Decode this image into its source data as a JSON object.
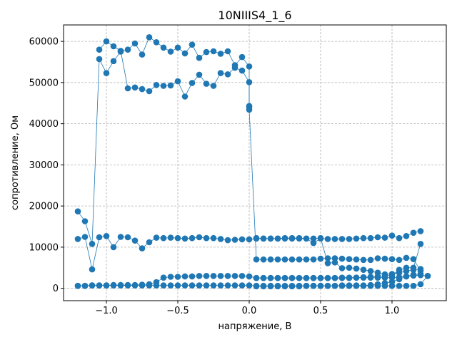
{
  "chart_data": {
    "type": "scatter",
    "title": "10NIIIS4_1_6",
    "xlabel": "напряжение, В",
    "ylabel": "сопротивление, Ом",
    "xlim": [
      -1.3,
      1.38
    ],
    "ylim": [
      -3000,
      64000
    ],
    "xticks": [
      -1.0,
      -0.5,
      0.0,
      0.5,
      1.0
    ],
    "xtick_labels": [
      "−1.0",
      "−0.5",
      "0.0",
      "0.5",
      "1.0"
    ],
    "yticks": [
      0,
      10000,
      20000,
      30000,
      40000,
      50000,
      60000
    ],
    "ytick_labels": [
      "0",
      "10000",
      "20000",
      "30000",
      "40000",
      "50000",
      "60000"
    ],
    "grid": true,
    "color": "#1f77b4",
    "series": [
      {
        "x": [
          -1.2,
          -1.15,
          -1.1,
          -1.05,
          -1.0,
          -0.95,
          -0.9,
          -0.85,
          -0.8,
          -0.75,
          -0.7,
          -0.65,
          -0.6,
          -0.55,
          -0.5,
          -0.45,
          -0.4,
          -0.35,
          -0.3,
          -0.25,
          -0.2,
          -0.15,
          -0.1,
          -0.05,
          0.0,
          0.05,
          0.1,
          0.15,
          0.2,
          0.25,
          0.3,
          0.35,
          0.4,
          0.45,
          0.5,
          0.55,
          0.6,
          0.65,
          0.7,
          0.75,
          0.8,
          0.85,
          0.9,
          0.95,
          1.0,
          1.05,
          1.1,
          1.15,
          1.2,
          1.25
        ],
        "y": [
          600,
          600,
          700,
          700,
          700,
          700,
          700,
          700,
          700,
          700,
          700,
          700,
          700,
          700,
          700,
          700,
          700,
          700,
          700,
          700,
          700,
          700,
          700,
          700,
          700,
          600,
          600,
          600,
          600,
          600,
          600,
          600,
          600,
          600,
          600,
          600,
          600,
          600,
          600,
          600,
          600,
          600,
          600,
          600,
          600,
          600,
          600,
          600,
          1000,
          3000
        ]
      },
      {
        "x": [
          1.25,
          1.2,
          1.15,
          1.1,
          1.05,
          1.0,
          0.95,
          0.9,
          0.85,
          0.8,
          0.75,
          0.7,
          0.65,
          0.6,
          0.55,
          0.5,
          0.45,
          0.4,
          0.35,
          0.3,
          0.25,
          0.2,
          0.15,
          0.1,
          0.05,
          0.0,
          -0.05,
          -0.1,
          -0.15,
          -0.2,
          -0.25,
          -0.3,
          -0.35,
          -0.4,
          -0.45,
          -0.5,
          -0.55,
          -0.6,
          -0.65,
          -0.7,
          -0.75,
          -0.8,
          -0.85,
          -0.9,
          -0.95,
          -1.0,
          -1.05,
          -1.1,
          -1.15,
          -1.2
        ],
        "y": [
          3000,
          3200,
          3100,
          2900,
          2700,
          2600,
          2600,
          2600,
          2600,
          2600,
          2600,
          2500,
          2500,
          2500,
          2500,
          2500,
          2500,
          2500,
          2500,
          2500,
          2500,
          2500,
          2500,
          2500,
          2500,
          2900,
          3000,
          3000,
          3000,
          3000,
          3000,
          3000,
          3000,
          2900,
          2900,
          2800,
          2800,
          2600,
          1500,
          1000,
          900,
          800,
          800,
          800,
          800,
          700,
          700,
          700,
          600,
          600
        ]
      },
      {
        "x": [
          -1.2,
          -1.15,
          -1.1,
          -1.05,
          -1.0,
          -0.95,
          -0.9,
          -0.85,
          -0.8,
          -0.75,
          -0.7,
          -0.65,
          -0.6,
          -0.55,
          -0.5,
          -0.45,
          -0.4,
          -0.35,
          -0.3,
          -0.25,
          -0.2,
          -0.15,
          -0.1,
          -0.05,
          0.0,
          0.0,
          0.0,
          0.05,
          0.1,
          0.15,
          0.2,
          0.25,
          0.3,
          0.35,
          0.4,
          0.45,
          0.5,
          0.55,
          0.6,
          0.65,
          0.7,
          0.75,
          0.8,
          0.85,
          0.9,
          0.95,
          1.0,
          1.05,
          1.1,
          1.15,
          1.2
        ],
        "y": [
          18700,
          16300,
          10800,
          55700,
          52300,
          55200,
          57500,
          58000,
          59500,
          56800,
          61000,
          59800,
          58500,
          57500,
          58500,
          57100,
          59200,
          56000,
          57400,
          57600,
          57000,
          57600,
          54200,
          56200,
          53900,
          44300,
          43400,
          7000,
          7000,
          7000,
          7000,
          7000,
          7000,
          7000,
          7000,
          7000,
          7200,
          7300,
          7300,
          7200,
          7100,
          7000,
          6900,
          6900,
          7300,
          7200,
          7100,
          6900,
          7400,
          7100,
          4300
        ]
      },
      {
        "x": [
          1.2,
          1.15,
          1.1,
          1.05,
          1.0,
          0.95,
          0.9,
          0.85,
          0.8,
          0.75,
          0.7,
          0.65,
          0.6,
          0.55,
          0.5,
          0.45,
          0.4,
          0.35,
          0.3,
          0.25,
          0.2,
          0.15,
          0.1,
          0.05,
          0.0,
          -0.05,
          -0.1,
          -0.15,
          -0.2,
          -0.25,
          -0.3,
          -0.35,
          -0.4,
          -0.45,
          -0.5,
          -0.55,
          -0.6,
          -0.65,
          -0.7,
          -0.75,
          -0.8,
          -0.85,
          -0.9,
          -0.95,
          -1.0,
          -1.05,
          -1.1,
          -1.15,
          -1.2
        ],
        "y": [
          4700,
          4500,
          4200,
          3800,
          3500,
          3400,
          3800,
          4200,
          4500,
          4800,
          5000,
          4900,
          6300,
          6100,
          12200,
          12100,
          12100,
          12100,
          12100,
          12100,
          12100,
          12100,
          12100,
          12100,
          11900,
          11900,
          11800,
          11700,
          12000,
          12200,
          12200,
          12400,
          12200,
          12100,
          12200,
          12300,
          12200,
          12300,
          11200,
          9700,
          11600,
          12400,
          12500,
          10000,
          12700,
          12400,
          4600,
          12500,
          12000
        ]
      },
      {
        "x": [
          -1.05,
          -1.0,
          -0.95,
          -0.9,
          -0.85,
          -0.8,
          -0.75,
          -0.7,
          -0.65,
          -0.6,
          -0.55,
          -0.5,
          -0.45,
          -0.4,
          -0.35,
          -0.3,
          -0.25,
          -0.2,
          -0.15,
          -0.1,
          -0.05,
          0.0,
          0.0
        ],
        "y": [
          58000,
          60000,
          58800,
          57700,
          48600,
          48800,
          48400,
          47900,
          49400,
          49200,
          49300,
          50300,
          46600,
          49900,
          51900,
          49700,
          49200,
          52300,
          52000,
          53600,
          52900,
          50100,
          44000
        ]
      },
      {
        "x": [
          0.05,
          0.1,
          0.15,
          0.2,
          0.25,
          0.3,
          0.35,
          0.4,
          0.45,
          0.5,
          0.55,
          0.6,
          0.65,
          0.7,
          0.75,
          0.8,
          0.85,
          0.9,
          0.95,
          1.0,
          1.05,
          1.1,
          1.15,
          1.2
        ],
        "y": [
          12200,
          12100,
          12100,
          12100,
          12200,
          12200,
          12200,
          12100,
          11000,
          12100,
          12000,
          12000,
          12000,
          12000,
          12100,
          12200,
          12200,
          12400,
          12300,
          12800,
          12200,
          12700,
          13500,
          13900
        ]
      },
      {
        "x": [
          1.2,
          1.15,
          1.1,
          1.05,
          1.0,
          0.95,
          0.9,
          0.85,
          0.8,
          0.75,
          0.7,
          0.65,
          0.6,
          0.55,
          0.5,
          0.45,
          0.4,
          0.35,
          0.3,
          0.25,
          0.2,
          0.15,
          0.1,
          0.05
        ],
        "y": [
          10800,
          5000,
          5000,
          4500,
          3200,
          3000,
          2900,
          2800,
          2700,
          2600,
          2600,
          2600,
          2500,
          2500,
          2500,
          2500,
          2500,
          2500,
          2500,
          2500,
          2500,
          2500,
          2500,
          2500
        ]
      },
      {
        "x": [
          1.2,
          1.15,
          1.1,
          1.05,
          1.0,
          0.95,
          0.9,
          0.85,
          0.8,
          0.75,
          0.7,
          0.65,
          0.6,
          0.55,
          0.5,
          0.45,
          0.4,
          0.35,
          0.3,
          0.25,
          0.2,
          0.15,
          0.1,
          0.05
        ],
        "y": [
          3500,
          3300,
          2900,
          2200,
          1600,
          1300,
          1000,
          800,
          700,
          700,
          700,
          700,
          600,
          600,
          600,
          600,
          600,
          500,
          500,
          500,
          500,
          500,
          500,
          500
        ]
      }
    ]
  }
}
